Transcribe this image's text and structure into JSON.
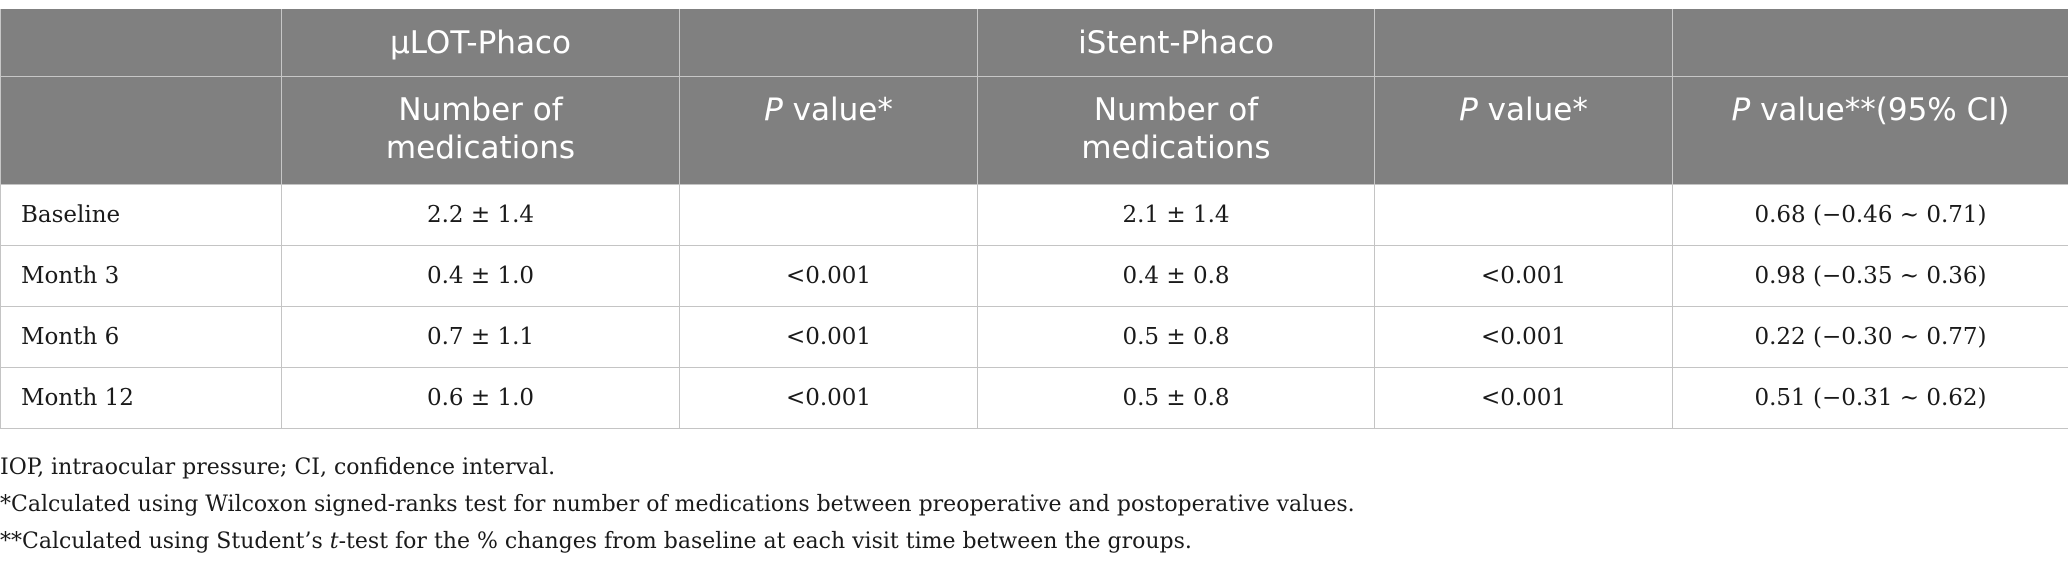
{
  "header": {
    "row1": [
      "",
      "μLOT-Phaco",
      "",
      "iStent-Phaco",
      "",
      ""
    ],
    "number_of_medications_line1": "Number of",
    "number_of_medications_line2": "medications",
    "p_value_italic": "P",
    "p_value_suffix": " value*",
    "p_value_ci_suffix": " value**(95% CI)"
  },
  "rows": [
    {
      "label": "Baseline",
      "ulot_meds": "2.2 ± 1.4",
      "ulot_p": "",
      "istent_meds": "2.1 ± 1.4",
      "istent_p": "",
      "p_between": "0.68 (−0.46 ~ 0.71)"
    },
    {
      "label": "Month 3",
      "ulot_meds": "0.4 ± 1.0",
      "ulot_p": "<0.001",
      "istent_meds": "0.4 ± 0.8",
      "istent_p": "<0.001",
      "p_between": "0.98 (−0.35 ~ 0.36)"
    },
    {
      "label": "Month 6",
      "ulot_meds": "0.7 ± 1.1",
      "ulot_p": "<0.001",
      "istent_meds": "0.5 ± 0.8",
      "istent_p": "<0.001",
      "p_between": "0.22 (−0.30 ~ 0.77)"
    },
    {
      "label": "Month 12",
      "ulot_meds": "0.6 ± 1.0",
      "ulot_p": "<0.001",
      "istent_meds": "0.5 ± 0.8",
      "istent_p": "<0.001",
      "p_between": "0.51 (−0.31 ~ 0.62)"
    }
  ],
  "footnotes": {
    "abbrev": "IOP, intraocular pressure; CI, confidence interval.",
    "single": "*Calculated using Wilcoxon signed-ranks test for number of medications between preoperative and postoperative values.",
    "double_prefix": "**Calculated using Student’s ",
    "double_italic": "t",
    "double_suffix": "-test for the % changes from baseline at each visit time between the groups."
  }
}
